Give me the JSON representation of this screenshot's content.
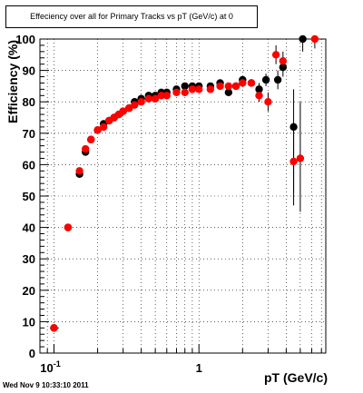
{
  "title": "Effeciency over all for Primary Tracks vs pT (GeV/c) at 0",
  "timestamp": "Wed Nov  9 10:33:10 2011",
  "chart_data": {
    "type": "scatter",
    "title": "Effeciency over all for Primary Tracks vs pT (GeV/c) at 0",
    "xlabel": "pT (GeV/c)",
    "ylabel": "Efficiency (%)",
    "xscale": "log",
    "xlim": [
      0.08,
      7.5
    ],
    "ylim": [
      0,
      100
    ],
    "grid": true,
    "x_ticks": [
      {
        "value": 0.1,
        "base": "10",
        "exp": "-1"
      },
      {
        "value": 1,
        "base": "1",
        "exp": ""
      }
    ],
    "y_ticks": [
      0,
      10,
      20,
      30,
      40,
      50,
      60,
      70,
      80,
      90,
      100
    ],
    "colors": {
      "series_black": "#000000",
      "series_red": "#ff0000"
    },
    "series": [
      {
        "color": "#000000",
        "points": [
          {
            "x": 0.1,
            "y": 8,
            "ylo": 7,
            "yhi": 9
          },
          {
            "x": 0.125,
            "y": 40,
            "ylo": 39,
            "yhi": 41
          },
          {
            "x": 0.15,
            "y": 57,
            "ylo": 56,
            "yhi": 58
          },
          {
            "x": 0.165,
            "y": 64,
            "ylo": 63,
            "yhi": 65
          },
          {
            "x": 0.18,
            "y": 68
          },
          {
            "x": 0.2,
            "y": 71
          },
          {
            "x": 0.22,
            "y": 73
          },
          {
            "x": 0.24,
            "y": 74
          },
          {
            "x": 0.26,
            "y": 75
          },
          {
            "x": 0.28,
            "y": 76
          },
          {
            "x": 0.3,
            "y": 77
          },
          {
            "x": 0.33,
            "y": 78
          },
          {
            "x": 0.36,
            "y": 80
          },
          {
            "x": 0.4,
            "y": 81
          },
          {
            "x": 0.45,
            "y": 82
          },
          {
            "x": 0.5,
            "y": 82
          },
          {
            "x": 0.55,
            "y": 83
          },
          {
            "x": 0.6,
            "y": 83
          },
          {
            "x": 0.7,
            "y": 84
          },
          {
            "x": 0.8,
            "y": 85
          },
          {
            "x": 0.9,
            "y": 85
          },
          {
            "x": 1.0,
            "y": 85
          },
          {
            "x": 1.2,
            "y": 85
          },
          {
            "x": 1.4,
            "y": 86
          },
          {
            "x": 1.6,
            "y": 83
          },
          {
            "x": 1.8,
            "y": 85
          },
          {
            "x": 2.0,
            "y": 87
          },
          {
            "x": 2.3,
            "y": 86
          },
          {
            "x": 2.6,
            "y": 84,
            "ylo": 82,
            "yhi": 86
          },
          {
            "x": 2.9,
            "y": 87,
            "ylo": 85,
            "yhi": 89
          },
          {
            "x": 3.5,
            "y": 87,
            "ylo": 84,
            "yhi": 90
          },
          {
            "x": 3.8,
            "y": 91,
            "ylo": 88,
            "yhi": 94
          },
          {
            "x": 4.5,
            "y": 72,
            "ylo": 47,
            "yhi": 84
          },
          {
            "x": 5.2,
            "y": 100,
            "ylo": 96,
            "yhi": 100
          }
        ]
      },
      {
        "color": "#ff0000",
        "points": [
          {
            "x": 0.1,
            "y": 8,
            "ylo": 7,
            "yhi": 9
          },
          {
            "x": 0.125,
            "y": 40,
            "ylo": 39,
            "yhi": 41
          },
          {
            "x": 0.15,
            "y": 58,
            "ylo": 57,
            "yhi": 59
          },
          {
            "x": 0.165,
            "y": 65,
            "ylo": 64,
            "yhi": 66
          },
          {
            "x": 0.18,
            "y": 68
          },
          {
            "x": 0.2,
            "y": 71
          },
          {
            "x": 0.22,
            "y": 72
          },
          {
            "x": 0.24,
            "y": 74
          },
          {
            "x": 0.26,
            "y": 75
          },
          {
            "x": 0.28,
            "y": 76
          },
          {
            "x": 0.3,
            "y": 77
          },
          {
            "x": 0.33,
            "y": 78
          },
          {
            "x": 0.36,
            "y": 79
          },
          {
            "x": 0.4,
            "y": 80
          },
          {
            "x": 0.45,
            "y": 81
          },
          {
            "x": 0.5,
            "y": 81
          },
          {
            "x": 0.55,
            "y": 82
          },
          {
            "x": 0.6,
            "y": 82
          },
          {
            "x": 0.7,
            "y": 83
          },
          {
            "x": 0.8,
            "y": 83
          },
          {
            "x": 0.9,
            "y": 84
          },
          {
            "x": 1.0,
            "y": 84
          },
          {
            "x": 1.2,
            "y": 84
          },
          {
            "x": 1.4,
            "y": 85
          },
          {
            "x": 1.6,
            "y": 85
          },
          {
            "x": 1.8,
            "y": 85
          },
          {
            "x": 2.0,
            "y": 86
          },
          {
            "x": 2.3,
            "y": 86
          },
          {
            "x": 2.6,
            "y": 82,
            "ylo": 80,
            "yhi": 84
          },
          {
            "x": 3.0,
            "y": 80,
            "ylo": 77,
            "yhi": 83
          },
          {
            "x": 3.4,
            "y": 95,
            "ylo": 92,
            "yhi": 98
          },
          {
            "x": 3.8,
            "y": 93,
            "ylo": 90,
            "yhi": 96
          },
          {
            "x": 4.5,
            "y": 61,
            "ylo": 51,
            "yhi": 72
          },
          {
            "x": 5.0,
            "y": 62,
            "ylo": 45,
            "yhi": 80
          },
          {
            "x": 6.3,
            "y": 100,
            "ylo": 97,
            "yhi": 100
          }
        ]
      }
    ]
  }
}
